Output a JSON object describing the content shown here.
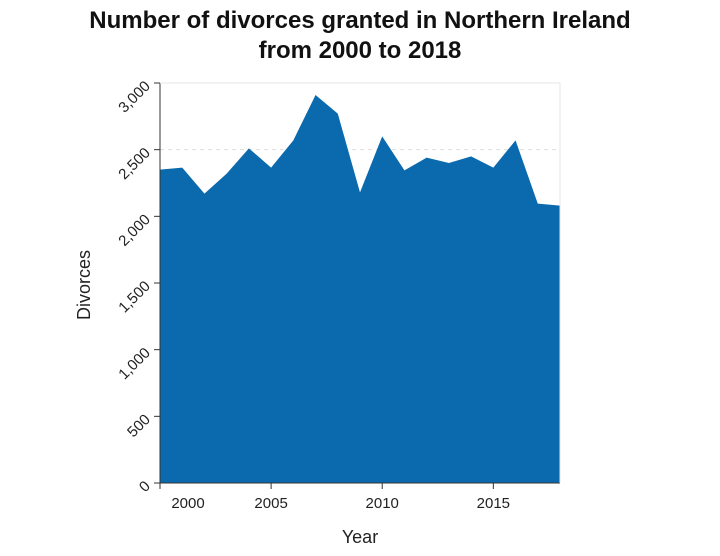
{
  "chart_data": {
    "type": "area",
    "title_lines": [
      "Number of divorces granted in Northern Ireland",
      "from 2000 to 2018"
    ],
    "xlabel": "Year",
    "ylabel": "Divorces",
    "xlim": [
      2000,
      2018
    ],
    "ylim": [
      0,
      3000
    ],
    "x_ticks": [
      2000,
      2005,
      2010,
      2015
    ],
    "y_ticks": [
      0,
      500,
      1000,
      1500,
      2000,
      2500,
      3000
    ],
    "y_tick_labels": [
      "0",
      "500",
      "1,000",
      "1,500",
      "2,000",
      "2,500",
      "3,000"
    ],
    "grid": "horizontal dashed",
    "colors": {
      "area": "#0a6aad",
      "grid": "#dddddd",
      "axis": "#333333"
    },
    "series": [
      {
        "x": [
          2000,
          2001,
          2002,
          2003,
          2004,
          2005,
          2006,
          2007,
          2008,
          2009,
          2010,
          2011,
          2012,
          2013,
          2014,
          2015,
          2016,
          2017,
          2018
        ],
        "values": [
          2350,
          2365,
          2170,
          2320,
          2510,
          2365,
          2570,
          2910,
          2770,
          2180,
          2600,
          2345,
          2440,
          2400,
          2450,
          2365,
          2570,
          2095,
          2080
        ]
      }
    ]
  }
}
